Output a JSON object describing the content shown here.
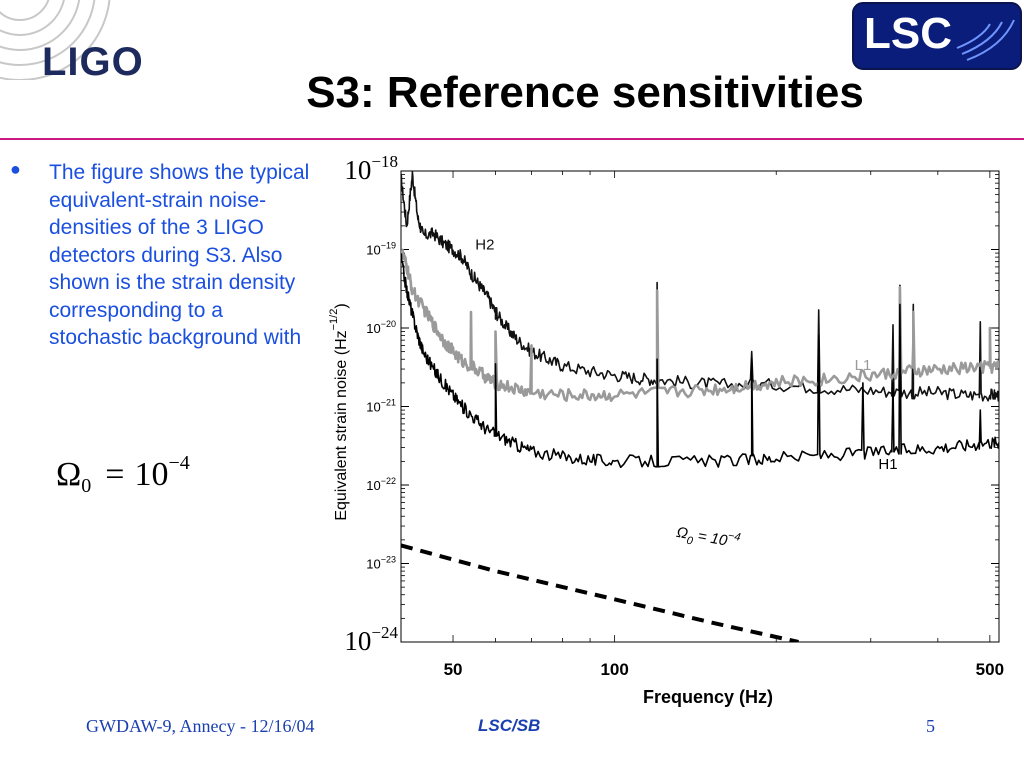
{
  "slide": {
    "title": "S3: Reference sensitivities",
    "logo_left": "LIGO",
    "logo_right": "LSC",
    "bullet": "The figure shows the typical equivalent-strain noise-densities of the 3 LIGO detectors during S3. Also shown is the strain density corresponding to a stochastic background with",
    "formula": {
      "symbol": "Ω",
      "subscript": "0",
      "eq": "=",
      "base": "10",
      "exponent": "−4"
    },
    "footer_left": "GWDAW-9, Annecy - 12/16/04",
    "footer_mid": "LSC/SB",
    "footer_right": "5",
    "colors": {
      "accent_rule": "#cc1a84",
      "bullet_text": "#1a4fe0",
      "footer_text": "#1a3fb0",
      "lsc_bg": "#0b1d7a"
    }
  },
  "chart_data": {
    "type": "line",
    "xscale": "log",
    "yscale": "log",
    "xlabel": "Frequency (Hz)",
    "ylabel": "Equivalent strain noise (Hz",
    "ylabel_exp": "−1/2",
    "ylabel_close": ")",
    "xlim": [
      40,
      520
    ],
    "ylim": [
      1e-24,
      1e-18
    ],
    "x_ticks": [
      {
        "value": 50,
        "label": "50"
      },
      {
        "value": 100,
        "label": "100"
      },
      {
        "value": 500,
        "label": "500"
      }
    ],
    "y_ticks": [
      {
        "value": 1e-18,
        "base": "10",
        "exp": "−18",
        "big": true
      },
      {
        "value": 1e-19,
        "base": "10",
        "exp": "−19",
        "big": false
      },
      {
        "value": 1e-20,
        "base": "10",
        "exp": "−20",
        "big": false
      },
      {
        "value": 1e-21,
        "base": "10",
        "exp": "−21",
        "big": false
      },
      {
        "value": 1e-22,
        "base": "10",
        "exp": "−22",
        "big": false
      },
      {
        "value": 1e-23,
        "base": "10",
        "exp": "−23",
        "big": false
      },
      {
        "value": 1e-24,
        "base": "10",
        "exp": "−24",
        "big": true
      }
    ],
    "annotation": {
      "text": "Ω",
      "sub": "0",
      "rest": " = 10",
      "sup": "−4",
      "x": 130,
      "y": 2.2e-23
    },
    "series": [
      {
        "name": "H2",
        "color": "#111111",
        "label_x": 55,
        "label_y": 1e-19,
        "points": [
          [
            40,
            8e-19
          ],
          [
            41,
            2e-19
          ],
          [
            42,
            9e-19
          ],
          [
            43,
            2.5e-19
          ],
          [
            44,
            1.5e-19
          ],
          [
            46,
            1.6e-19
          ],
          [
            48,
            1.2e-19
          ],
          [
            50,
            1e-19
          ],
          [
            52,
            8e-20
          ],
          [
            54,
            5e-20
          ],
          [
            56,
            3.5e-20
          ],
          [
            58,
            2.5e-20
          ],
          [
            60,
            1.6e-20
          ],
          [
            63,
            1e-20
          ],
          [
            66,
            7e-21
          ],
          [
            70,
            5e-21
          ],
          [
            75,
            4e-21
          ],
          [
            80,
            3.3e-21
          ],
          [
            90,
            2.8e-21
          ],
          [
            100,
            2.5e-21
          ],
          [
            110,
            2.3e-21
          ],
          [
            120,
            2.2e-21
          ],
          [
            140,
            2e-21
          ],
          [
            160,
            1.9e-21
          ],
          [
            200,
            1.9e-21
          ],
          [
            250,
            1.7e-21
          ],
          [
            300,
            1.6e-21
          ],
          [
            350,
            1.5e-21
          ],
          [
            400,
            1.5e-21
          ],
          [
            450,
            1.4e-21
          ],
          [
            500,
            1.4e-21
          ],
          [
            520,
            1.4e-21
          ]
        ],
        "peaks": [
          [
            60,
            1.3e-20
          ],
          [
            120,
            3.8e-20
          ],
          [
            180,
            5e-21
          ],
          [
            240,
            1.7e-20
          ],
          [
            330,
            1.1e-20
          ],
          [
            340,
            3.5e-20
          ],
          [
            360,
            2e-20
          ],
          [
            480,
            1.2e-20
          ]
        ]
      },
      {
        "name": "L1",
        "color": "#9a9a9a",
        "label_x": 280,
        "label_y": 2.9e-21,
        "points": [
          [
            40,
            1e-19
          ],
          [
            41,
            6e-20
          ],
          [
            42,
            3e-20
          ],
          [
            44,
            1.8e-20
          ],
          [
            46,
            1.1e-20
          ],
          [
            48,
            7e-21
          ],
          [
            50,
            5e-21
          ],
          [
            52,
            3.8e-21
          ],
          [
            55,
            3e-21
          ],
          [
            58,
            2.3e-21
          ],
          [
            60,
            2e-21
          ],
          [
            65,
            1.7e-21
          ],
          [
            70,
            1.5e-21
          ],
          [
            80,
            1.4e-21
          ],
          [
            90,
            1.4e-21
          ],
          [
            100,
            1.4e-21
          ],
          [
            120,
            1.5e-21
          ],
          [
            140,
            1.6e-21
          ],
          [
            160,
            1.7e-21
          ],
          [
            180,
            1.9e-21
          ],
          [
            200,
            2e-21
          ],
          [
            240,
            2.2e-21
          ],
          [
            280,
            2.4e-21
          ],
          [
            320,
            2.6e-21
          ],
          [
            360,
            2.8e-21
          ],
          [
            400,
            2.9e-21
          ],
          [
            450,
            3.1e-21
          ],
          [
            500,
            3.2e-21
          ],
          [
            520,
            3.2e-21
          ]
        ],
        "peaks": [
          [
            54,
            1.6e-20
          ],
          [
            60,
            9e-21
          ],
          [
            70,
            6e-21
          ],
          [
            120,
            3e-20
          ],
          [
            340,
            3.3e-20
          ],
          [
            360,
            1.6e-20
          ],
          [
            500,
            1e-20
          ]
        ]
      },
      {
        "name": "H1",
        "color": "#000000",
        "label_x": 310,
        "label_y": 1.6e-22,
        "points": [
          [
            40,
            8e-20
          ],
          [
            41,
            3e-20
          ],
          [
            42,
            1.5e-20
          ],
          [
            43,
            8e-21
          ],
          [
            44,
            5e-21
          ],
          [
            46,
            3e-21
          ],
          [
            48,
            2e-21
          ],
          [
            50,
            1.4e-21
          ],
          [
            52,
            1e-21
          ],
          [
            55,
            7e-22
          ],
          [
            58,
            5e-22
          ],
          [
            62,
            4e-22
          ],
          [
            66,
            3.2e-22
          ],
          [
            70,
            2.7e-22
          ],
          [
            80,
            2.3e-22
          ],
          [
            90,
            2.1e-22
          ],
          [
            100,
            2e-22
          ],
          [
            120,
            2e-22
          ],
          [
            150,
            2e-22
          ],
          [
            180,
            2.1e-22
          ],
          [
            200,
            2.2e-22
          ],
          [
            250,
            2.4e-22
          ],
          [
            300,
            2.6e-22
          ],
          [
            350,
            2.8e-22
          ],
          [
            400,
            3e-22
          ],
          [
            450,
            3.2e-22
          ],
          [
            500,
            3.5e-22
          ],
          [
            520,
            3.5e-22
          ]
        ],
        "peaks": [
          [
            60,
            3.5e-21
          ],
          [
            120,
            4e-21
          ],
          [
            180,
            4e-21
          ],
          [
            240,
            8e-21
          ],
          [
            290,
            2e-21
          ],
          [
            330,
            2e-21
          ],
          [
            340,
            2e-20
          ],
          [
            480,
            9e-22
          ]
        ]
      },
      {
        "name": "Ω0 = 10^-4",
        "color": "#000000",
        "dashed": true,
        "points": [
          [
            40,
            1.7e-23
          ],
          [
            60,
            8e-24
          ],
          [
            100,
            3.5e-24
          ],
          [
            150,
            1.8e-24
          ],
          [
            220,
            1e-24
          ]
        ]
      }
    ]
  }
}
